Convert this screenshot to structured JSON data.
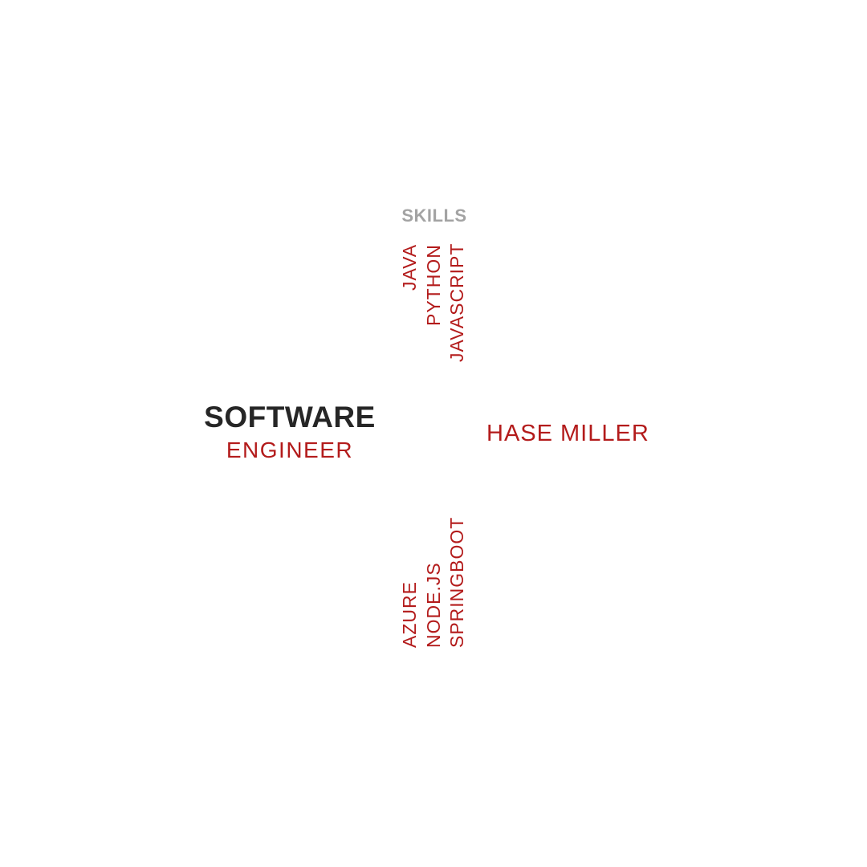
{
  "colors": {
    "accent": "#b31b1b",
    "heading_dark": "#262626",
    "label_gray": "#a3a3a3",
    "background": "#ffffff"
  },
  "skills": {
    "heading": "SKILLS",
    "top_group": [
      "JAVA",
      "PYTHON",
      "JAVASCRIPT"
    ],
    "bottom_group": [
      "AZURE",
      "NODE.JS",
      "SPRINGBOOT"
    ]
  },
  "title": {
    "main": "SOFTWARE",
    "sub": "ENGINEER"
  },
  "name": "HASE MILLER"
}
